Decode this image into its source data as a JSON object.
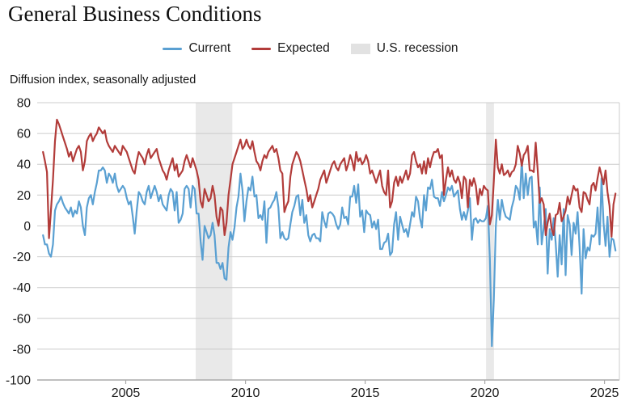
{
  "title": "General Business Conditions",
  "subtitle": "Diffusion index, seasonally adjusted",
  "legend": [
    {
      "label": "Current",
      "color": "#5AA0D2",
      "swatch": "line"
    },
    {
      "label": "Expected",
      "color": "#B23C3A",
      "swatch": "line"
    },
    {
      "label": "U.S. recession",
      "color": "#E2E2E2",
      "swatch": "box"
    }
  ],
  "colors": {
    "current_line": "#5AA0D2",
    "expected_line": "#B23C3A",
    "recession_band": "#E9E9E9",
    "gridline": "#CCCCCC",
    "axis_line": "#AAAAAA",
    "tick_text": "#1A1A1A"
  },
  "chart_data": {
    "type": "line",
    "title": "General Business Conditions",
    "ylabel": "Diffusion index, seasonally adjusted",
    "xlabel": "",
    "frequency": "monthly",
    "series_start": "2001-07",
    "series_end": "2025-06",
    "xlim": [
      2001.3,
      2025.62
    ],
    "ylim": [
      -100,
      80
    ],
    "y_ticks": [
      80,
      60,
      40,
      20,
      0,
      -20,
      -40,
      -60,
      -80,
      -100
    ],
    "x_ticks": [
      2005,
      2010,
      2015,
      2020,
      2025
    ],
    "grid": "horizontal",
    "legend_position": "top-center",
    "recessions": [
      {
        "id": "2008",
        "label": "U.S. recession",
        "start": 2007.92,
        "end": 2009.45,
        "period": "Dec 2007 - Jun 2009"
      },
      {
        "id": "2020",
        "label": "U.S. recession",
        "start": 2020.05,
        "end": 2020.38,
        "period": "Feb 2020 - Apr 2020"
      }
    ],
    "series": [
      {
        "name": "Current",
        "color": "#5AA0D2",
        "values": [
          -6,
          -12,
          -12,
          -18,
          -20,
          -12,
          10,
          14,
          16,
          19,
          15,
          12,
          10,
          8,
          12,
          6,
          10,
          8,
          16,
          12,
          0,
          -6,
          12,
          18,
          20,
          14,
          22,
          28,
          36,
          36,
          38,
          36,
          28,
          34,
          32,
          28,
          34,
          26,
          22,
          24,
          26,
          24,
          18,
          14,
          16,
          6,
          -5,
          10,
          22,
          20,
          16,
          14,
          22,
          26,
          18,
          22,
          26,
          22,
          16,
          20,
          14,
          12,
          10,
          20,
          24,
          22,
          10,
          22,
          2,
          4,
          8,
          24,
          26,
          24,
          12,
          26,
          24,
          8,
          8,
          -10,
          -22,
          0,
          -4,
          -8,
          -6,
          2,
          -6,
          -24,
          -24,
          -28,
          -24,
          -34,
          -35,
          -14,
          -4,
          -9,
          -1,
          12,
          19,
          34,
          23,
          3,
          16,
          25,
          23,
          32,
          19,
          20,
          5,
          7,
          4,
          16,
          -11,
          11,
          12,
          15,
          17,
          22,
          12,
          -8,
          -4,
          -8,
          -9,
          -8,
          1,
          9,
          13,
          19,
          20,
          7,
          17,
          2,
          7,
          -6,
          -10,
          -6,
          -5,
          -8,
          -8,
          -10,
          9,
          3,
          -1,
          8,
          9,
          8,
          6,
          1,
          -2,
          1,
          12,
          5,
          6,
          1,
          19,
          19,
          26,
          15,
          27,
          6,
          10,
          -4,
          10,
          8,
          7,
          -1,
          3,
          -2,
          4,
          -15,
          -15,
          -11,
          -10,
          -5,
          -19,
          -17,
          1,
          9,
          -9,
          6,
          1,
          -4,
          -2,
          -7,
          1,
          9,
          6,
          19,
          16,
          5,
          -1,
          20,
          10,
          25,
          24,
          30,
          19,
          18,
          18,
          13,
          22,
          16,
          20,
          25,
          23,
          26,
          19,
          21,
          23,
          11,
          4,
          9,
          4,
          10,
          18,
          -9,
          4,
          5,
          2,
          4,
          3,
          3,
          5,
          13,
          -21,
          -78,
          -48,
          0,
          17,
          4,
          17,
          10,
          6,
          5,
          4,
          12,
          17,
          26,
          24,
          17,
          43,
          18,
          34,
          20,
          31,
          32,
          -1,
          3,
          -12,
          25,
          -12,
          -1,
          11,
          -31,
          -2,
          -9,
          5,
          -11,
          -33,
          -6,
          -25,
          11,
          -32,
          7,
          1,
          -19,
          2,
          -5,
          9,
          -14,
          -44,
          -2,
          -21,
          -14,
          -16,
          -6,
          -7,
          -5,
          12,
          -12,
          31,
          2,
          -13,
          6,
          -20,
          -8,
          -9,
          -16
        ]
      },
      {
        "name": "Expected",
        "color": "#B23C3A",
        "values": [
          48,
          42,
          35,
          -8,
          10,
          30,
          55,
          69,
          66,
          62,
          58,
          54,
          50,
          45,
          48,
          42,
          46,
          50,
          52,
          48,
          36,
          42,
          55,
          58,
          60,
          55,
          58,
          60,
          64,
          62,
          60,
          62,
          55,
          52,
          50,
          48,
          52,
          50,
          48,
          46,
          52,
          50,
          48,
          44,
          40,
          36,
          34,
          42,
          48,
          46,
          44,
          40,
          46,
          50,
          44,
          46,
          48,
          50,
          44,
          40,
          36,
          34,
          30,
          36,
          40,
          44,
          36,
          40,
          32,
          34,
          36,
          42,
          46,
          42,
          38,
          44,
          40,
          36,
          30,
          16,
          12,
          24,
          20,
          16,
          18,
          26,
          20,
          6,
          0,
          12,
          10,
          -6,
          2,
          20,
          30,
          40,
          44,
          48,
          52,
          56,
          50,
          52,
          56,
          52,
          50,
          55,
          48,
          42,
          40,
          36,
          42,
          46,
          44,
          48,
          50,
          52,
          48,
          50,
          44,
          36,
          34,
          9,
          13,
          16,
          32,
          40,
          44,
          48,
          46,
          42,
          36,
          30,
          24,
          16,
          20,
          12,
          16,
          20,
          24,
          30,
          33,
          36,
          28,
          32,
          36,
          40,
          42,
          38,
          36,
          40,
          42,
          44,
          36,
          40,
          46,
          42,
          36,
          48,
          42,
          44,
          40,
          42,
          46,
          42,
          34,
          36,
          32,
          28,
          32,
          36,
          26,
          22,
          20,
          36,
          12,
          16,
          28,
          32,
          26,
          32,
          28,
          32,
          36,
          30,
          34,
          46,
          48,
          42,
          38,
          40,
          34,
          42,
          34,
          44,
          38,
          44,
          48,
          48,
          50,
          44,
          46,
          20,
          30,
          38,
          32,
          36,
          30,
          28,
          32,
          28,
          18,
          32,
          30,
          12,
          30,
          26,
          31,
          26,
          14,
          24,
          20,
          26,
          24,
          23,
          1,
          7,
          29,
          56,
          38,
          34,
          40,
          33,
          34,
          36,
          32,
          35,
          36,
          40,
          52,
          47,
          39,
          46,
          48,
          52,
          36,
          36,
          35,
          54,
          36,
          15,
          18,
          14,
          -6,
          2,
          8,
          -2,
          -6,
          7,
          8,
          15,
          3,
          6,
          10,
          19,
          14,
          20,
          26,
          23,
          24,
          12,
          9,
          22,
          21,
          17,
          14,
          26,
          28,
          23,
          31,
          38,
          33,
          27,
          36,
          22,
          13,
          -7,
          14,
          21
        ]
      }
    ]
  }
}
